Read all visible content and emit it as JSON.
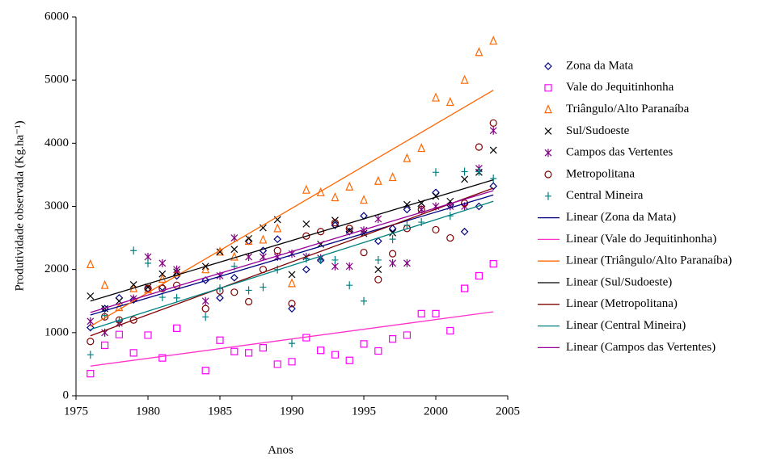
{
  "chart_data": {
    "type": "scatter",
    "x_label": "Anos",
    "y_label": "Produtividade observada (Kg.ha⁻¹)",
    "xlim": [
      1975,
      2005
    ],
    "xticks": [
      1975,
      1980,
      1985,
      1990,
      1995,
      2000,
      2005
    ],
    "ylim": [
      0,
      6000
    ],
    "yticks": [
      0,
      1000,
      2000,
      3000,
      4000,
      5000,
      6000
    ],
    "grid": false,
    "legend": "right",
    "x": [
      1976,
      1977,
      1978,
      1979,
      1980,
      1981,
      1982,
      1984,
      1985,
      1986,
      1987,
      1988,
      1989,
      1990,
      1991,
      1992,
      1993,
      1994,
      1995,
      1996,
      1997,
      1998,
      1999,
      2000,
      2001,
      2002,
      2003,
      2004
    ],
    "series": [
      {
        "name": "Zona da Mata",
        "color": "#000080",
        "marker": "diamond",
        "values": [
          1080,
          1380,
          1550,
          1520,
          1700,
          1720,
          1900,
          1830,
          1550,
          1870,
          2450,
          2300,
          2480,
          1380,
          2000,
          2150,
          2700,
          2600,
          2850,
          2450,
          2650,
          2950,
          3000,
          3220,
          3020,
          2600,
          3000,
          3320
        ]
      },
      {
        "name": "Vale do Jequitinhonha",
        "color": "#ff00ff",
        "marker": "square",
        "values": [
          350,
          800,
          970,
          680,
          960,
          600,
          1070,
          400,
          880,
          700,
          680,
          760,
          500,
          540,
          920,
          720,
          650,
          560,
          820,
          710,
          900,
          960,
          1300,
          1300,
          1030,
          1700,
          1900,
          2090
        ]
      },
      {
        "name": "Triângulo/Alto Paranaíba",
        "color": "#ff6600",
        "marker": "triangle",
        "values": [
          2080,
          1750,
          1400,
          1700,
          1680,
          1850,
          1950,
          2000,
          2280,
          2200,
          2450,
          2470,
          2650,
          1780,
          3260,
          3220,
          3140,
          3310,
          3100,
          3400,
          3460,
          3760,
          3920,
          4720,
          4650,
          5000,
          5440,
          5620
        ]
      },
      {
        "name": "Sul/Sudoeste",
        "color": "#000000",
        "marker": "x",
        "values": [
          1580,
          1380,
          1500,
          1760,
          1720,
          1930,
          1960,
          2050,
          2280,
          2320,
          2490,
          2660,
          2790,
          1920,
          2720,
          2400,
          2780,
          2620,
          2570,
          2000,
          2580,
          3030,
          3050,
          3160,
          3080,
          3430,
          3540,
          3890
        ]
      },
      {
        "name": "Campos das Vertentes",
        "color": "#800080",
        "marker": "asterisk",
        "values": [
          1180,
          1000,
          1150,
          1540,
          2200,
          2100,
          2000,
          1500,
          1900,
          2500,
          2200,
          2200,
          2200,
          2250,
          2200,
          2180,
          2050,
          2050,
          2620,
          2800,
          2100,
          2100,
          2950,
          3000,
          3000,
          3000,
          3600,
          4200
        ]
      },
      {
        "name": "Metropolitana",
        "color": "#800000",
        "marker": "circle",
        "values": [
          860,
          1250,
          1200,
          1200,
          1700,
          1700,
          1750,
          1380,
          1660,
          1640,
          1490,
          2000,
          2300,
          1460,
          2530,
          2600,
          2740,
          2650,
          2270,
          1840,
          2250,
          2650,
          2950,
          2630,
          2500,
          3050,
          3940,
          4320
        ]
      },
      {
        "name": "Central Mineira",
        "color": "#008080",
        "marker": "plus",
        "values": [
          650,
          1270,
          1180,
          2300,
          2100,
          1560,
          1550,
          1250,
          1700,
          2050,
          1670,
          1720,
          2000,
          830,
          2170,
          2150,
          2150,
          1750,
          1500,
          2150,
          2480,
          2700,
          2750,
          3540,
          2850,
          3550,
          3550,
          3440
        ]
      }
    ],
    "trends": [
      {
        "name": "Linear (Zona da Mata)",
        "color": "#000080",
        "x": [
          1976,
          2004
        ],
        "values": [
          1280,
          3180
        ]
      },
      {
        "name": "Linear (Vale do Jequitinhonha)",
        "color": "#ff33cc",
        "x": [
          1976,
          2004
        ],
        "values": [
          470,
          1330
        ]
      },
      {
        "name": "Linear (Triângulo/Alto Paranaíba)",
        "color": "#ff6600",
        "x": [
          1976,
          2004
        ],
        "values": [
          1100,
          4840
        ]
      },
      {
        "name": "Linear (Sul/Sudoeste)",
        "color": "#000000",
        "x": [
          1976,
          2004
        ],
        "values": [
          1500,
          3420
        ]
      },
      {
        "name": "Linear (Metropolitana)",
        "color": "#800000",
        "x": [
          1976,
          2004
        ],
        "values": [
          950,
          3290
        ]
      },
      {
        "name": "Linear (Central Mineira)",
        "color": "#008080",
        "x": [
          1976,
          2004
        ],
        "values": [
          1050,
          3080
        ]
      },
      {
        "name": "Linear (Campos das Vertentes)",
        "color": "#990099",
        "x": [
          1976,
          2004
        ],
        "values": [
          1320,
          3250
        ]
      }
    ]
  }
}
